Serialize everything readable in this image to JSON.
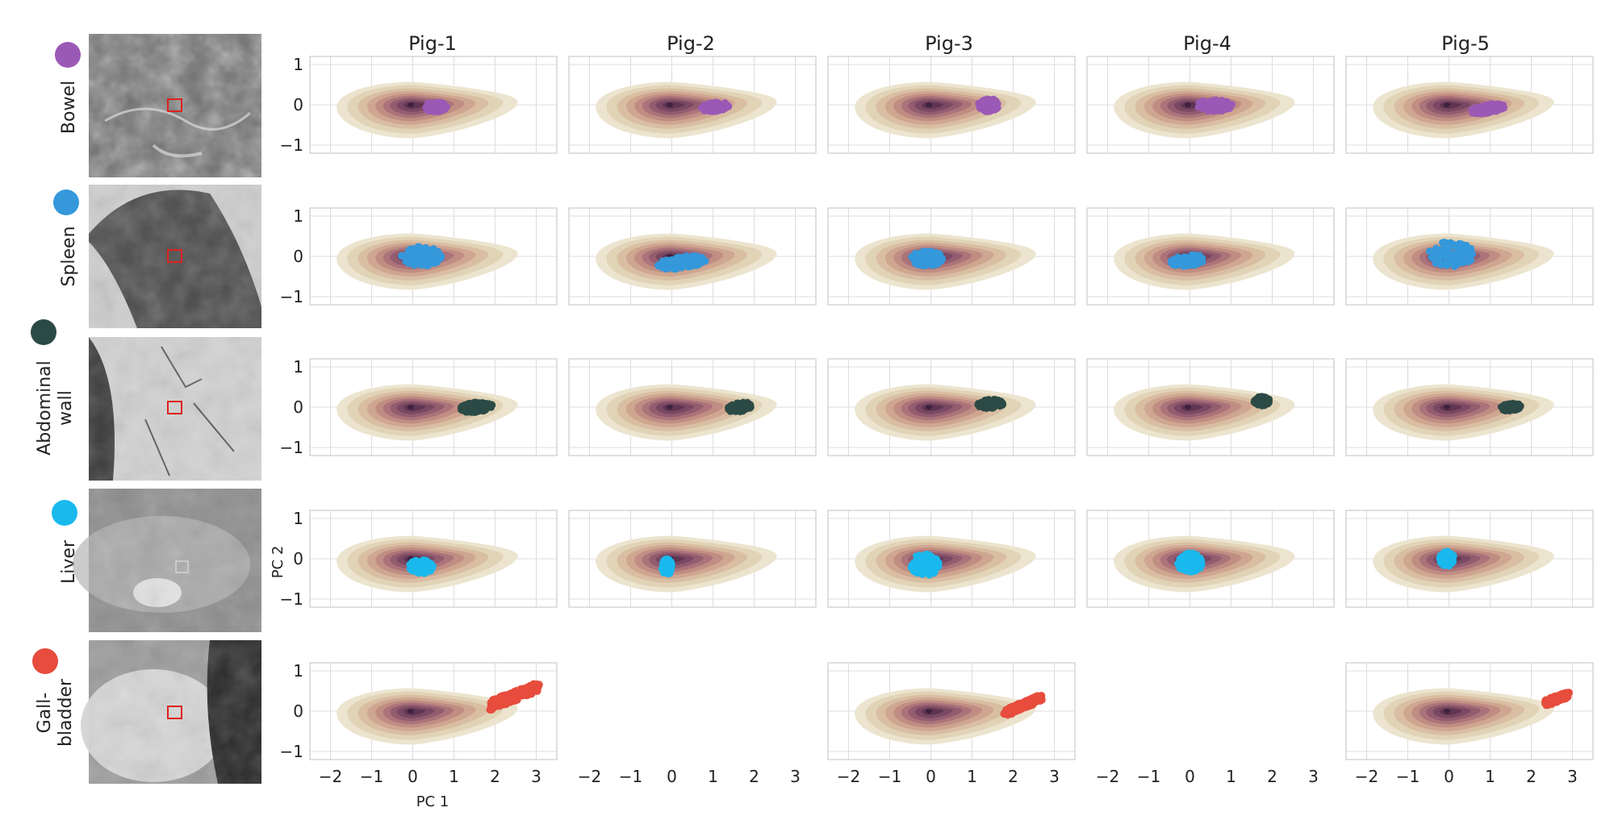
{
  "figure": {
    "xlabel": "PC 1",
    "ylabel": "PC 2",
    "xlim": [
      -2.5,
      3.5
    ],
    "ylim": [
      -1.2,
      1.2
    ],
    "xticks": [
      -2,
      -1,
      0,
      1,
      2,
      3
    ],
    "yticks": [
      1,
      0,
      -1
    ],
    "pigs": [
      "Pig-1",
      "Pig-2",
      "Pig-3",
      "Pig-4",
      "Pig-5"
    ],
    "density_colors": [
      "#ece4cf",
      "#e1d3b6",
      "#d9bea2",
      "#cfa690",
      "#c08d83",
      "#ac737a",
      "#935d6f",
      "#7a4862",
      "#5f3551"
    ],
    "organs": [
      {
        "label_lines": [
          "Bowel"
        ],
        "color": "#9b59b6"
      },
      {
        "label_lines": [
          "Spleen"
        ],
        "color": "#3498db"
      },
      {
        "label_lines": [
          "Abdominal",
          "wall"
        ],
        "color": "#2c4a45"
      },
      {
        "label_lines": [
          "Liver"
        ],
        "color": "#19b9ee"
      },
      {
        "label_lines": [
          "Gall-",
          "bladder"
        ],
        "color": "#e74c3c"
      }
    ]
  },
  "chart_data": {
    "type": "scatter",
    "background": "2D density of all samples (PC 1 vs PC 2), centered at (0, 0)",
    "xlabel": "PC 1",
    "ylabel": "PC 2",
    "xlim": [
      -2.5,
      3.5
    ],
    "ylim": [
      -1.2,
      1.2
    ],
    "cells": [
      {
        "organ": "Bowel",
        "pig": "Pig-1",
        "cx": 0.55,
        "cy": -0.05,
        "rx": 0.28,
        "ry": 0.13,
        "slope": 0.0
      },
      {
        "organ": "Bowel",
        "pig": "Pig-2",
        "cx": 1.05,
        "cy": -0.05,
        "rx": 0.35,
        "ry": 0.12,
        "slope": 0.1
      },
      {
        "organ": "Bowel",
        "pig": "Pig-3",
        "cx": 1.4,
        "cy": 0.0,
        "rx": 0.25,
        "ry": 0.18,
        "slope": 0.0
      },
      {
        "organ": "Bowel",
        "pig": "Pig-4",
        "cx": 0.6,
        "cy": -0.02,
        "rx": 0.45,
        "ry": 0.15,
        "slope": 0.0
      },
      {
        "organ": "Bowel",
        "pig": "Pig-5",
        "cx": 0.95,
        "cy": -0.1,
        "rx": 0.42,
        "ry": 0.12,
        "slope": 0.15
      },
      {
        "organ": "Spleen",
        "pig": "Pig-1",
        "cx": 0.2,
        "cy": 0.0,
        "rx": 0.5,
        "ry": 0.25,
        "slope": 0.0
      },
      {
        "organ": "Spleen",
        "pig": "Pig-2",
        "cx": 0.25,
        "cy": -0.15,
        "rx": 0.6,
        "ry": 0.16,
        "slope": 0.12
      },
      {
        "organ": "Spleen",
        "pig": "Pig-3",
        "cx": -0.1,
        "cy": -0.05,
        "rx": 0.4,
        "ry": 0.2,
        "slope": 0.0
      },
      {
        "organ": "Spleen",
        "pig": "Pig-4",
        "cx": -0.05,
        "cy": -0.1,
        "rx": 0.42,
        "ry": 0.15,
        "slope": 0.1
      },
      {
        "organ": "Spleen",
        "pig": "Pig-5",
        "cx": 0.05,
        "cy": 0.05,
        "rx": 0.55,
        "ry": 0.32,
        "slope": 0.0
      },
      {
        "organ": "Abdominal wall",
        "pig": "Pig-1",
        "cx": 1.55,
        "cy": 0.0,
        "rx": 0.4,
        "ry": 0.14,
        "slope": 0.1
      },
      {
        "organ": "Abdominal wall",
        "pig": "Pig-2",
        "cx": 1.65,
        "cy": 0.0,
        "rx": 0.3,
        "ry": 0.12,
        "slope": 0.15
      },
      {
        "organ": "Abdominal wall",
        "pig": "Pig-3",
        "cx": 1.45,
        "cy": 0.08,
        "rx": 0.32,
        "ry": 0.12,
        "slope": 0.05
      },
      {
        "organ": "Abdominal wall",
        "pig": "Pig-4",
        "cx": 1.75,
        "cy": 0.15,
        "rx": 0.2,
        "ry": 0.12,
        "slope": 0.0
      },
      {
        "organ": "Abdominal wall",
        "pig": "Pig-5",
        "cx": 1.5,
        "cy": 0.0,
        "rx": 0.25,
        "ry": 0.1,
        "slope": 0.1
      },
      {
        "organ": "Liver",
        "pig": "Pig-1",
        "cx": 0.2,
        "cy": -0.2,
        "rx": 0.3,
        "ry": 0.18,
        "slope": 0.0
      },
      {
        "organ": "Liver",
        "pig": "Pig-2",
        "cx": -0.12,
        "cy": -0.2,
        "rx": 0.13,
        "ry": 0.2,
        "slope": 0.0
      },
      {
        "organ": "Liver",
        "pig": "Pig-3",
        "cx": -0.15,
        "cy": -0.15,
        "rx": 0.35,
        "ry": 0.28,
        "slope": 0.0
      },
      {
        "organ": "Liver",
        "pig": "Pig-4",
        "cx": 0.0,
        "cy": -0.1,
        "rx": 0.3,
        "ry": 0.25,
        "slope": 0.0
      },
      {
        "organ": "Liver",
        "pig": "Pig-5",
        "cx": -0.05,
        "cy": 0.0,
        "rx": 0.18,
        "ry": 0.2,
        "slope": 0.0
      },
      {
        "organ": "Gall-bladder",
        "pig": "Pig-1",
        "x0": 1.9,
        "y0": 0.15,
        "x1": 3.05,
        "y1": 0.6,
        "w": 0.12
      },
      {
        "organ": "Gall-bladder",
        "pig": "Pig-3",
        "x0": 1.8,
        "y0": -0.05,
        "x1": 2.7,
        "y1": 0.35,
        "w": 0.08
      },
      {
        "organ": "Gall-bladder",
        "pig": "Pig-5",
        "x0": 2.35,
        "y0": 0.2,
        "x1": 2.9,
        "y1": 0.42,
        "w": 0.07
      }
    ]
  }
}
